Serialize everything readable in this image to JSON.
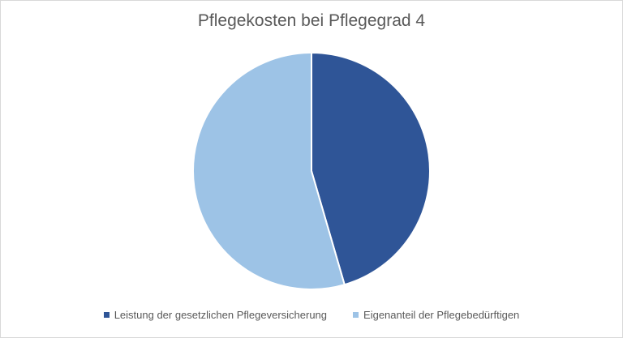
{
  "chart_data": {
    "type": "pie",
    "title": "Pflegekosten bei Pflegegrad 4",
    "categories": [
      "Leistung der gesetzlichen Pflegeversicherung",
      "Eigenanteil der Pflegebedürftigen"
    ],
    "values": [
      45.5,
      54.5
    ],
    "colors": [
      "#2f5597",
      "#9dc3e6"
    ],
    "start_angle_deg": 0,
    "direction": "clockwise",
    "legend_position": "bottom"
  }
}
